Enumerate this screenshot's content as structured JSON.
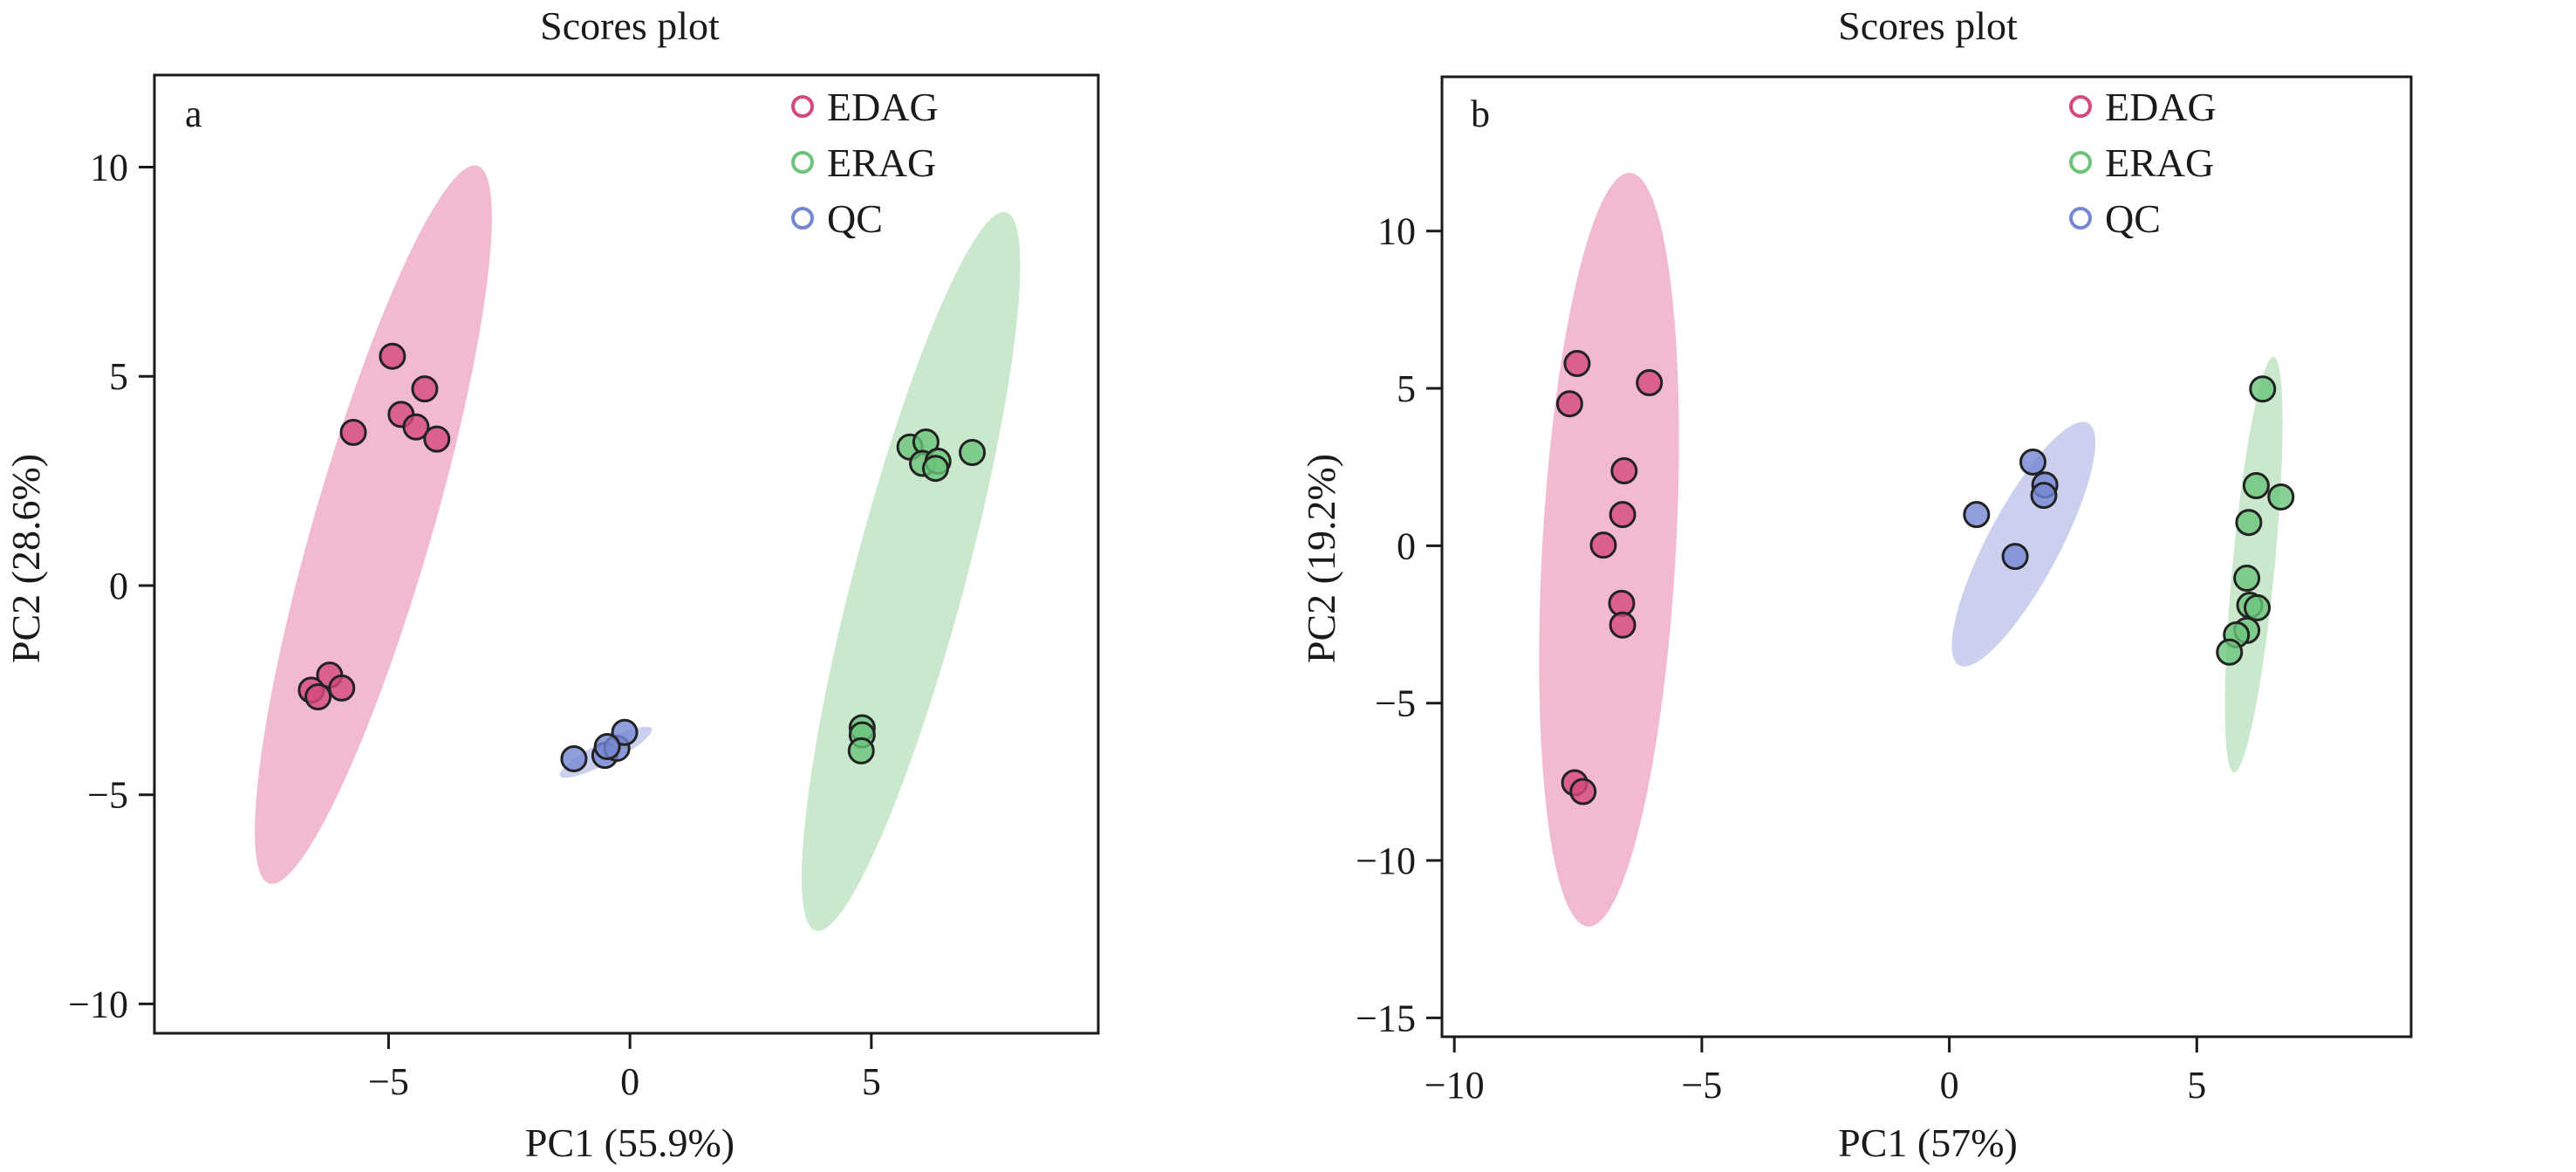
{
  "chart_data": [
    {
      "type": "scatter",
      "panel_label": "a",
      "title": "Scores plot",
      "xlabel": "PC1 (55.9%)",
      "ylabel": "PC2 (28.6%)",
      "xlim": [
        -9.85,
        9.7
      ],
      "ylim": [
        -10.7,
        12.2
      ],
      "xticks": [
        -5,
        0,
        5
      ],
      "xtick_labels": [
        "−5",
        "0",
        "5"
      ],
      "yticks": [
        -10,
        -5,
        0,
        5,
        10
      ],
      "ytick_labels": [
        "−10",
        "−5",
        "0",
        "5",
        "10"
      ],
      "grid": false,
      "legend_position": "top-right",
      "series": [
        {
          "name": "EDAG",
          "color": "#d6487e",
          "ellipse_color": "#f0b3cb",
          "ellipse": {
            "p1": [
              -3.16,
              10.03
            ],
            "p2": [
              -7.47,
              -7.12
            ],
            "minor": 2.45
          },
          "points": [
            [
              -4.92,
              5.48
            ],
            [
              -4.25,
              4.7
            ],
            [
              -4.74,
              4.09
            ],
            [
              -4.43,
              3.79
            ],
            [
              -4.0,
              3.5
            ],
            [
              -5.73,
              3.66
            ],
            [
              -6.22,
              -2.14
            ],
            [
              -5.97,
              -2.45
            ],
            [
              -6.6,
              -2.5
            ],
            [
              -6.46,
              -2.66
            ]
          ]
        },
        {
          "name": "ERAG",
          "color": "#6cc47a",
          "ellipse_color": "#c3e6c6",
          "ellipse": {
            "p1": [
              7.79,
              8.92
            ],
            "p2": [
              3.85,
              -8.25
            ],
            "minor": 2.3
          },
          "points": [
            [
              5.8,
              3.31
            ],
            [
              6.13,
              3.43
            ],
            [
              6.06,
              2.92
            ],
            [
              6.38,
              2.97
            ],
            [
              6.33,
              2.8
            ],
            [
              7.09,
              3.18
            ],
            [
              4.81,
              -3.4
            ],
            [
              4.81,
              -3.57
            ],
            [
              4.79,
              -3.95
            ]
          ]
        },
        {
          "name": "QC",
          "color": "#7487d2",
          "ellipse_color": "#c5cbec",
          "ellipse": {
            "p1": [
              0.45,
              -3.42
            ],
            "p2": [
              -1.45,
              -4.55
            ],
            "minor": 0.45
          },
          "points": [
            [
              -1.16,
              -4.14
            ],
            [
              -0.52,
              -4.06
            ],
            [
              -0.27,
              -3.89
            ],
            [
              -0.11,
              -3.51
            ],
            [
              -0.47,
              -3.85
            ]
          ]
        }
      ]
    },
    {
      "type": "scatter",
      "panel_label": "b",
      "title": "Scores plot",
      "xlabel": "PC1 (57%)",
      "ylabel": "PC2 (19.2%)",
      "xlim": [
        -10.25,
        9.33
      ],
      "ylim": [
        -15.6,
        14.9
      ],
      "xticks": [
        -10,
        -5,
        0,
        5
      ],
      "xtick_labels": [
        "−10",
        "−5",
        "0",
        "5"
      ],
      "yticks": [
        -15,
        -10,
        -5,
        0,
        5,
        10
      ],
      "ytick_labels": [
        "−15",
        "−10",
        "−5",
        "0",
        "5",
        "10"
      ],
      "grid": false,
      "legend_position": "top-right",
      "series": [
        {
          "name": "EDAG",
          "color": "#d6487e",
          "ellipse_color": "#f0b3cb",
          "ellipse": {
            "p1": [
              -6.45,
              11.85
            ],
            "p2": [
              -7.3,
              -12.1
            ],
            "minor": 2.7
          },
          "points": [
            [
              -7.52,
              5.79
            ],
            [
              -6.06,
              5.18
            ],
            [
              -7.67,
              4.51
            ],
            [
              -6.57,
              2.38
            ],
            [
              -6.6,
              0.99
            ],
            [
              -6.99,
              0.02
            ],
            [
              -6.62,
              -1.83
            ],
            [
              -6.6,
              -2.52
            ],
            [
              -7.57,
              -7.53
            ],
            [
              -7.4,
              -7.81
            ]
          ]
        },
        {
          "name": "ERAG",
          "color": "#6cc47a",
          "ellipse_color": "#c3e6c6",
          "ellipse": {
            "p1": [
              6.55,
              6.0
            ],
            "p2": [
              5.75,
              -7.2
            ],
            "minor": 0.85
          },
          "points": [
            [
              6.33,
              4.98
            ],
            [
              6.2,
              1.91
            ],
            [
              6.7,
              1.55
            ],
            [
              6.05,
              0.74
            ],
            [
              6.01,
              -1.03
            ],
            [
              6.07,
              -1.89
            ],
            [
              6.22,
              -1.97
            ],
            [
              6.01,
              -2.69
            ],
            [
              5.8,
              -2.83
            ],
            [
              5.66,
              -3.38
            ]
          ]
        },
        {
          "name": "QC",
          "color": "#7487d2",
          "ellipse_color": "#c5cbec",
          "ellipse": {
            "p1": [
              2.8,
              3.9
            ],
            "p2": [
              0.2,
              -3.8
            ],
            "minor": 1.45
          },
          "points": [
            [
              1.69,
              2.66
            ],
            [
              1.93,
              1.93
            ],
            [
              1.91,
              1.6
            ],
            [
              0.55,
              0.99
            ],
            [
              1.33,
              -0.34
            ]
          ]
        }
      ]
    }
  ]
}
